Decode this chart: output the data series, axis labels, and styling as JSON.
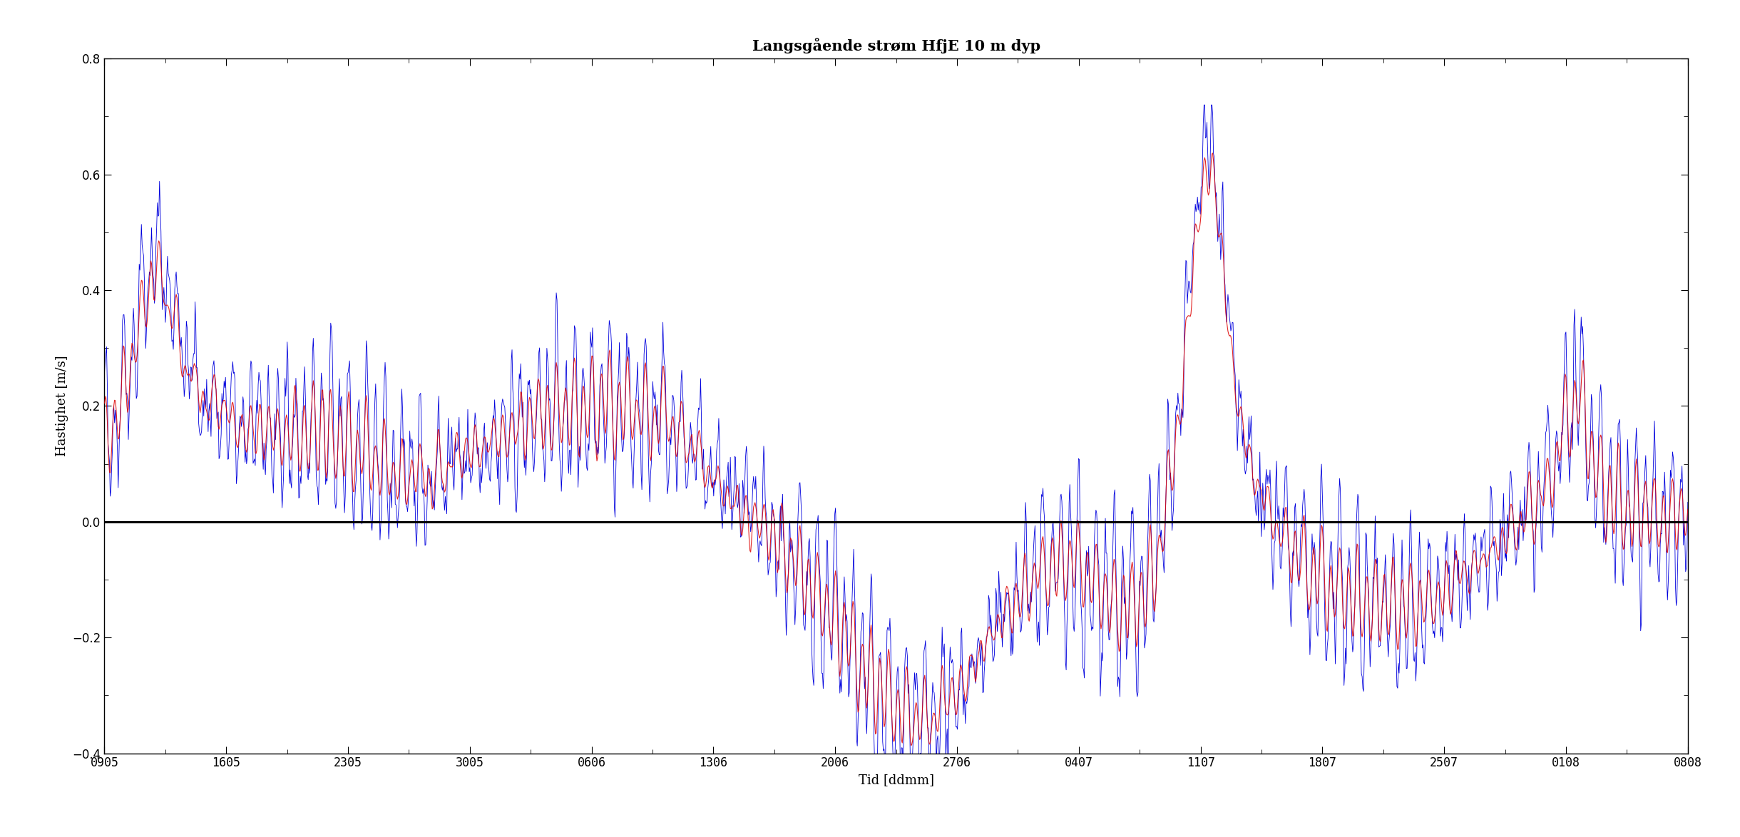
{
  "title": "Langsgående strøm HfjE 10 m dyp",
  "xlabel": "Tid [ddmm]",
  "ylabel": "Hastighet [m/s]",
  "ylim": [
    -0.4,
    0.8
  ],
  "yticks": [
    -0.4,
    -0.2,
    0.0,
    0.2,
    0.4,
    0.6,
    0.8
  ],
  "xtick_labels": [
    "0905",
    "1605",
    "2305",
    "3005",
    "0606",
    "1306",
    "2006",
    "2706",
    "0407",
    "1107",
    "1807",
    "2507",
    "0108",
    "0808"
  ],
  "blue_color": "#0000dd",
  "red_color": "#dd0000",
  "zero_line_color": "#000000",
  "bg_color": "#ffffff",
  "title_fontsize": 15,
  "label_fontsize": 13,
  "tick_fontsize": 12,
  "figsize": [
    24.4,
    11.74
  ],
  "dpi": 100
}
